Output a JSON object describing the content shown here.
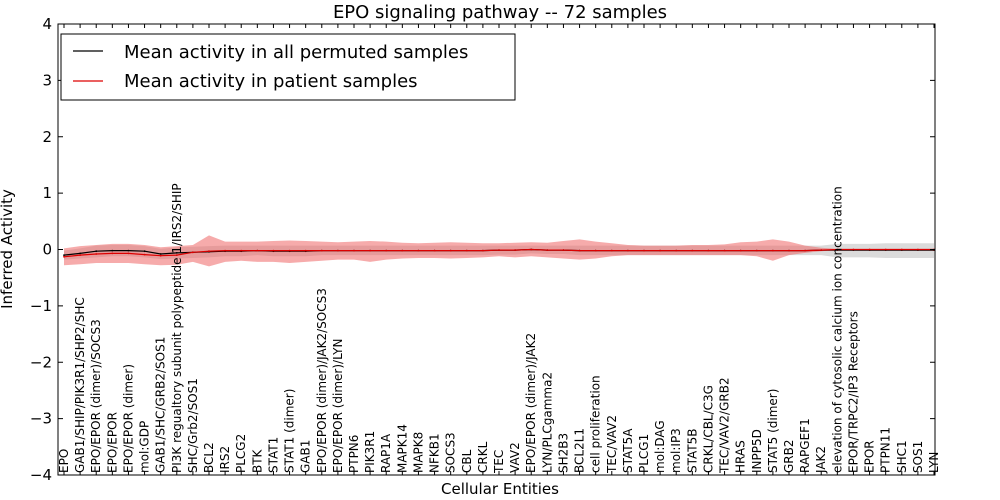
{
  "chart_data": {
    "type": "line",
    "title": "EPO signaling pathway -- 72 samples",
    "xlabel": "Cellular Entities",
    "ylabel": "Inferred Activity",
    "ylim": [
      -4,
      4
    ],
    "yticks": [
      -4,
      -3,
      -2,
      -1,
      0,
      1,
      2,
      3,
      4
    ],
    "ytick_labels": [
      "−4",
      "−3",
      "−2",
      "−1",
      "0",
      "1",
      "2",
      "3",
      "4"
    ],
    "grid": false,
    "legend_position": "top-left",
    "categories": [
      "EPO",
      "GAB1/SHIP/PIK3R1/SHP2/SHC",
      "EPO/EPOR (dimer)/SOCS3",
      "EPO/EPOR",
      "EPO/EPOR (dimer)",
      "mol:GDP",
      "GAB1/SHC/GRB2/SOS1",
      "PI3K regualtory subunit polypeptide 1/IRS2/SHIP",
      "SHC/Grb2/SOS1",
      "BCL2",
      "IRS2",
      "PLCG2",
      "BTK",
      "STAT1",
      "STAT1 (dimer)",
      "GAB1",
      "EPO/EPOR (dimer)/JAK2/SOCS3",
      "EPO/EPOR (dimer)/LYN",
      "PTPN6",
      "PIK3R1",
      "RAP1A",
      "MAPK14",
      "MAPK8",
      "NFKB1",
      "SOCS3",
      "CBL",
      "CRKL",
      "TEC",
      "VAV2",
      "EPO/EPOR (dimer)/JAK2",
      "LYN/PLCgamma2",
      "SH2B3",
      "BCL2L1",
      "cell proliferation",
      "TEC/VAV2",
      "STAT5A",
      "PLCG1",
      "mol:DAG",
      "mol:IP3",
      "STAT5B",
      "CRKL/CBL/C3G",
      "TEC/VAV2/GRB2",
      "HRAS",
      "INPP5D",
      "STAT5 (dimer)",
      "GRB2",
      "RAPGEF1",
      "JAK2",
      "elevation of cytosolic calcium ion concentration",
      "EPOR/TRPC2/IP3 Receptors",
      "EPOR",
      "PTPN11",
      "SHC1",
      "SOS1",
      "LYN"
    ],
    "series": [
      {
        "name": "Mean activity in all permuted samples",
        "color": "#000000",
        "band_color": "#b0b0b0",
        "values": [
          -0.1,
          -0.07,
          -0.03,
          -0.02,
          -0.02,
          -0.03,
          -0.08,
          -0.06,
          -0.05,
          -0.04,
          -0.03,
          -0.03,
          -0.02,
          -0.03,
          -0.03,
          -0.03,
          -0.02,
          -0.02,
          -0.02,
          -0.02,
          -0.02,
          -0.02,
          -0.02,
          -0.02,
          -0.02,
          -0.02,
          -0.02,
          -0.01,
          -0.01,
          0.0,
          -0.01,
          -0.01,
          -0.02,
          -0.02,
          -0.02,
          -0.02,
          -0.02,
          -0.02,
          -0.02,
          -0.02,
          -0.02,
          -0.02,
          -0.02,
          -0.02,
          -0.02,
          -0.02,
          -0.02,
          -0.01,
          -0.01,
          -0.01,
          -0.01,
          -0.01,
          -0.01,
          -0.01,
          -0.01
        ],
        "lower": [
          -0.18,
          -0.16,
          -0.14,
          -0.12,
          -0.12,
          -0.14,
          -0.17,
          -0.16,
          -0.15,
          -0.14,
          -0.12,
          -0.12,
          -0.1,
          -0.12,
          -0.12,
          -0.12,
          -0.1,
          -0.1,
          -0.1,
          -0.1,
          -0.1,
          -0.1,
          -0.1,
          -0.1,
          -0.1,
          -0.1,
          -0.1,
          -0.09,
          -0.09,
          -0.07,
          -0.08,
          -0.08,
          -0.1,
          -0.1,
          -0.1,
          -0.1,
          -0.1,
          -0.1,
          -0.1,
          -0.1,
          -0.1,
          -0.1,
          -0.1,
          -0.1,
          -0.1,
          -0.1,
          -0.1,
          -0.1,
          -0.14,
          -0.14,
          -0.14,
          -0.15,
          -0.15,
          -0.15,
          -0.15
        ],
        "upper": [
          -0.02,
          0.02,
          0.07,
          0.08,
          0.08,
          0.06,
          0.01,
          0.04,
          0.05,
          0.06,
          0.07,
          0.07,
          0.07,
          0.07,
          0.07,
          0.07,
          0.07,
          0.07,
          0.07,
          0.07,
          0.07,
          0.07,
          0.07,
          0.07,
          0.07,
          0.07,
          0.07,
          0.07,
          0.07,
          0.07,
          0.07,
          0.07,
          0.07,
          0.07,
          0.07,
          0.07,
          0.07,
          0.07,
          0.07,
          0.07,
          0.07,
          0.07,
          0.07,
          0.07,
          0.07,
          0.07,
          0.07,
          0.07,
          0.1,
          0.1,
          0.1,
          0.11,
          0.11,
          0.11,
          0.11
        ]
      },
      {
        "name": "Mean activity in patient samples",
        "color": "#dd0000",
        "band_color": "#ee6666",
        "values": [
          -0.13,
          -0.1,
          -0.08,
          -0.07,
          -0.07,
          -0.09,
          -0.11,
          -0.1,
          -0.05,
          -0.03,
          -0.02,
          -0.02,
          -0.02,
          -0.02,
          -0.02,
          -0.02,
          -0.02,
          -0.02,
          -0.02,
          -0.02,
          -0.02,
          -0.02,
          -0.02,
          -0.02,
          -0.02,
          -0.02,
          -0.02,
          -0.01,
          -0.01,
          0.0,
          -0.01,
          -0.01,
          -0.02,
          -0.02,
          -0.02,
          -0.02,
          -0.02,
          -0.02,
          -0.02,
          -0.02,
          -0.02,
          -0.02,
          -0.02,
          -0.02,
          -0.02,
          -0.02,
          -0.02,
          -0.01,
          0.0,
          0.0,
          0.0,
          0.0,
          0.0,
          0.0,
          0.0
        ],
        "lower": [
          -0.28,
          -0.26,
          -0.24,
          -0.24,
          -0.24,
          -0.26,
          -0.28,
          -0.27,
          -0.22,
          -0.3,
          -0.22,
          -0.2,
          -0.22,
          -0.22,
          -0.24,
          -0.22,
          -0.2,
          -0.18,
          -0.18,
          -0.22,
          -0.18,
          -0.16,
          -0.15,
          -0.15,
          -0.16,
          -0.15,
          -0.14,
          -0.12,
          -0.14,
          -0.12,
          -0.14,
          -0.16,
          -0.18,
          -0.16,
          -0.12,
          -0.1,
          -0.1,
          -0.1,
          -0.1,
          -0.1,
          -0.1,
          -0.1,
          -0.1,
          -0.12,
          -0.2,
          -0.1,
          -0.06,
          -0.03,
          -0.01,
          -0.01,
          -0.01,
          -0.01,
          -0.01,
          -0.01,
          -0.01
        ],
        "upper": [
          0.02,
          0.06,
          0.08,
          0.1,
          0.1,
          0.08,
          0.04,
          0.06,
          0.08,
          0.25,
          0.14,
          0.14,
          0.14,
          0.15,
          0.16,
          0.15,
          0.14,
          0.13,
          0.14,
          0.15,
          0.14,
          0.12,
          0.11,
          0.12,
          0.13,
          0.12,
          0.11,
          0.11,
          0.12,
          0.13,
          0.12,
          0.15,
          0.18,
          0.14,
          0.11,
          0.08,
          0.07,
          0.07,
          0.07,
          0.08,
          0.08,
          0.09,
          0.13,
          0.14,
          0.18,
          0.14,
          0.07,
          0.03,
          0.01,
          0.01,
          0.01,
          0.01,
          0.01,
          0.01,
          0.01
        ]
      }
    ]
  }
}
